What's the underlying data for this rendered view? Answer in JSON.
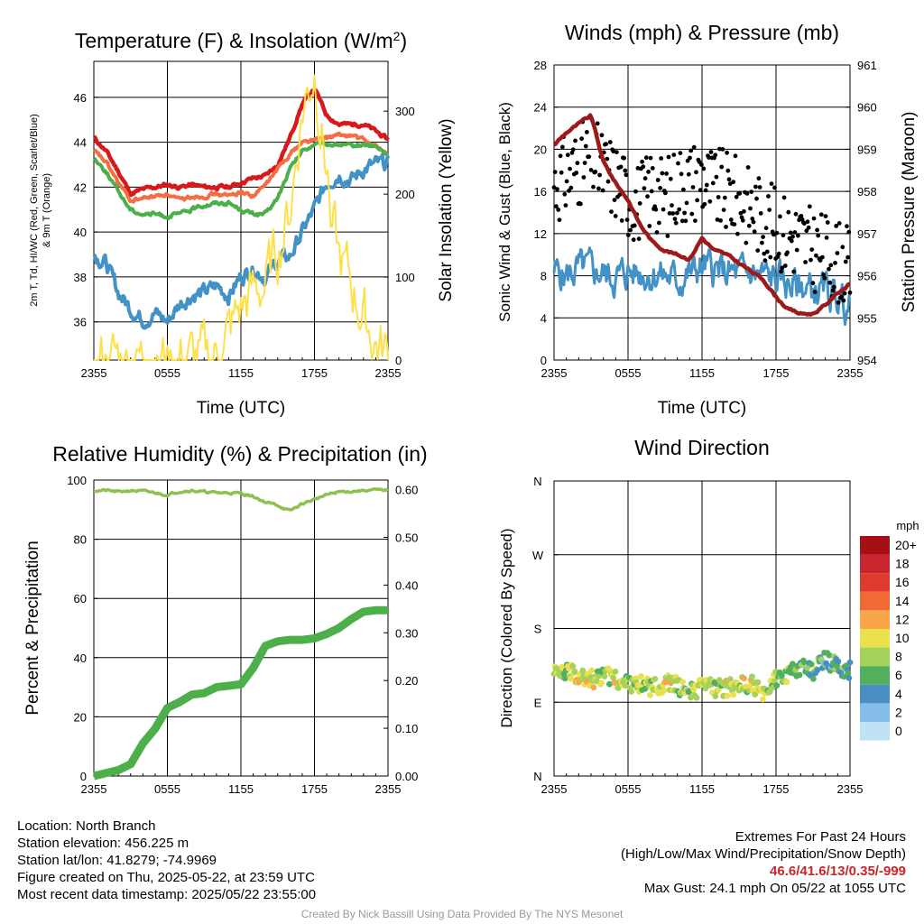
{
  "panels": {
    "temperature": {
      "title": "Temperature (F) & Insolation (W/m²)",
      "title_main": "Temperature (F) & Insolation (W/m",
      "title_sup": "2",
      "title_close": ")",
      "ylabel_left_line1": "2m T, Td, HI/WC (Red, Green, Scarlet/Blue)",
      "ylabel_left_line2": "& 9m T (Orange)",
      "ylabel_right": "Solar Insolation (Yellow)",
      "xlabel": "Time (UTC)"
    },
    "winds": {
      "title": "Winds (mph) & Pressure (mb)",
      "ylabel_left": "Sonic Wind & Gust (Blue, Black)",
      "ylabel_right": "Station Pressure (Maroon)",
      "xlabel": "Time (UTC)"
    },
    "humidity": {
      "title": "Relative Humidity (%) & Precipitation (in)",
      "ylabel_left": "Percent & Precipitation"
    },
    "direction": {
      "title": "Wind Direction",
      "ylabel_left": "Direction (Colored By Speed)",
      "legend_title": "mph"
    }
  },
  "footer": {
    "location": "Location: North Branch",
    "elevation": "Station elevation: 456.225 m",
    "latlon": "Station lat/lon: 41.8279; -74.9969",
    "created": "Figure created on Thu, 2025-05-22, at 23:59 UTC",
    "recent": "Most recent data timestamp: 2025/05/22 23:55:00",
    "extremes_title": "Extremes For Past 24 Hours",
    "extremes_sub": "(High/Low/Max Wind/Precipitation/Snow Depth)",
    "extremes_values": "46.6/41.6/13/0.35/-999",
    "max_gust": "Max Gust: 24.1 mph On 05/22 at 1055 UTC",
    "credit": "Created By Nick Bassill Using Data Provided By The NYS Mesonet"
  },
  "chart_data": [
    {
      "type": "line",
      "title": "Temperature (F) & Insolation (W/m2)",
      "xlabel": "Time (UTC)",
      "ylabel": "2m T, Td, HI/WC (Red, Green, Scarlet/Blue) & 9m T (Orange)",
      "ylabel_right": "Solar Insolation (Yellow)",
      "x_ticks": [
        "2355",
        "0555",
        "1155",
        "1755",
        "2355"
      ],
      "ylim": [
        34.3,
        47.6
      ],
      "y_ticks": [
        36,
        38,
        40,
        42,
        44,
        46
      ],
      "ylim_right": [
        0,
        360
      ],
      "y_ticks_right": [
        0,
        100,
        200,
        300
      ],
      "x_hours": [
        0,
        1,
        2,
        3,
        4,
        5,
        6,
        7,
        8,
        9,
        10,
        11,
        12,
        13,
        14,
        15,
        16,
        17,
        18,
        19,
        20,
        21,
        22,
        23,
        24
      ],
      "series": [
        {
          "color": "#d7191c",
          "axis": "left",
          "values": [
            44.2,
            43.6,
            42.7,
            41.7,
            41.9,
            42.0,
            42.1,
            42.0,
            42.1,
            42.0,
            42.0,
            42.0,
            42.2,
            42.4,
            42.5,
            43.0,
            44.2,
            45.7,
            46.4,
            45.2,
            44.8,
            44.8,
            44.8,
            44.5,
            44.1
          ]
        },
        {
          "color": "#f46d43",
          "axis": "left",
          "values": [
            43.6,
            43.1,
            42.2,
            41.4,
            41.5,
            41.6,
            41.7,
            41.4,
            41.6,
            41.6,
            41.7,
            41.6,
            41.8,
            41.6,
            42.1,
            42.8,
            43.5,
            44.0,
            44.1,
            44.2,
            44.3,
            44.3,
            44.1,
            43.8,
            43.5
          ]
        },
        {
          "color": "#4daf4a",
          "axis": "left",
          "values": [
            43.3,
            42.7,
            41.8,
            41.0,
            40.8,
            40.8,
            40.7,
            40.8,
            41.0,
            41.2,
            41.3,
            41.3,
            41.0,
            40.8,
            40.8,
            41.5,
            42.8,
            43.6,
            43.9,
            43.9,
            43.9,
            43.8,
            43.9,
            43.8,
            43.4
          ]
        },
        {
          "color": "#4292c6",
          "axis": "left",
          "values": [
            39.0,
            38.6,
            37.3,
            36.6,
            36.1,
            36.4,
            36.0,
            36.8,
            37.2,
            37.3,
            37.6,
            37.2,
            38.0,
            38.4,
            38.0,
            38.7,
            38.9,
            40.0,
            41.0,
            42.2,
            42.6,
            42.3,
            42.8,
            43.0,
            43.0
          ]
        },
        {
          "color": "#fee04b",
          "axis": "right",
          "values": [
            0,
            0,
            0,
            0,
            0,
            0,
            0,
            0,
            0,
            0,
            5,
            30,
            60,
            80,
            90,
            130,
            180,
            300,
            350,
            230,
            120,
            90,
            50,
            20,
            5
          ]
        }
      ]
    },
    {
      "type": "line",
      "title": "Winds (mph) & Pressure (mb)",
      "xlabel": "Time (UTC)",
      "ylabel": "Sonic Wind & Gust (Blue, Black)",
      "ylabel_right": "Station Pressure (Maroon)",
      "x_ticks": [
        "2355",
        "0555",
        "1155",
        "1755",
        "2355"
      ],
      "ylim": [
        0,
        28
      ],
      "y_ticks": [
        0,
        4,
        8,
        12,
        16,
        20,
        24,
        28
      ],
      "ylim_right": [
        954,
        961
      ],
      "y_ticks_right": [
        954,
        955,
        956,
        957,
        958,
        959,
        960,
        961
      ],
      "x_hours": [
        0,
        1,
        2,
        3,
        4,
        5,
        6,
        7,
        8,
        9,
        10,
        11,
        12,
        13,
        14,
        15,
        16,
        17,
        18,
        19,
        20,
        21,
        22,
        23,
        24
      ],
      "series": [
        {
          "color": "#4292c6",
          "axis": "left",
          "label": "Sonic Wind",
          "values": [
            8.5,
            8.0,
            8.6,
            8.5,
            8.2,
            7.8,
            8.4,
            8.3,
            8.2,
            8.0,
            7.5,
            8.2,
            8.8,
            8.6,
            8.2,
            8.0,
            8.3,
            7.9,
            7.7,
            7.2,
            7.0,
            6.6,
            6.4,
            6.0,
            5.0
          ]
        },
        {
          "color": "#9e1a1a",
          "axis": "right",
          "label": "Station Pressure",
          "values": [
            959.1,
            959.4,
            959.6,
            959.8,
            958.7,
            958.2,
            957.8,
            957.2,
            956.8,
            956.6,
            956.5,
            956.4,
            956.9,
            956.6,
            956.5,
            956.3,
            956.1,
            955.9,
            955.5,
            955.2,
            955.1,
            955.1,
            955.3,
            955.6,
            955.8
          ]
        },
        {
          "color": "#000000",
          "axis": "left",
          "label": "Gust",
          "style": "scatter",
          "values": [
            16.8,
            17.5,
            18.5,
            19.3,
            18.0,
            17.2,
            15.5,
            15.0,
            16.5,
            15.2,
            16.8,
            17.0,
            17.5,
            16.2,
            16.0,
            15.3,
            14.6,
            13.5,
            12.5,
            12.0,
            11.5,
            10.5,
            10.0,
            9.5,
            8.5
          ]
        }
      ]
    },
    {
      "type": "line",
      "title": "Relative Humidity (%) & Precipitation (in)",
      "ylabel": "Percent & Precipitation",
      "x_ticks": [
        "2355",
        "0555",
        "1155",
        "1755",
        "2355"
      ],
      "ylim": [
        0,
        100
      ],
      "y_ticks": [
        0,
        20,
        40,
        60,
        80,
        100
      ],
      "ylim_right": [
        0.0,
        0.62
      ],
      "y_ticks_right": [
        "0.00",
        "0.10",
        "0.20",
        "0.30",
        "0.40",
        "0.50",
        "0.60"
      ],
      "x_hours": [
        0,
        1,
        2,
        3,
        4,
        5,
        6,
        7,
        8,
        9,
        10,
        11,
        12,
        13,
        14,
        15,
        16,
        17,
        18,
        19,
        20,
        21,
        22,
        23,
        24
      ],
      "series": [
        {
          "color": "#8fc152",
          "axis": "left",
          "label": "Relative Humidity",
          "values": [
            96.5,
            96.5,
            96.0,
            96.5,
            96.2,
            95.7,
            95.0,
            96.2,
            96.5,
            96.0,
            95.7,
            95.7,
            95.5,
            94.5,
            92.5,
            91.5,
            89.5,
            92.0,
            93.5,
            95.0,
            96.0,
            96.2,
            96.5,
            96.6,
            96.6
          ]
        },
        {
          "color": "#4daf4a",
          "axis": "left",
          "label": "Precipitation",
          "values": [
            0,
            1,
            2,
            4,
            11,
            16,
            23,
            25,
            27.5,
            28,
            30,
            30.5,
            31,
            36.5,
            44,
            45.5,
            46,
            46,
            46.5,
            48,
            50,
            53,
            55.5,
            56,
            56
          ]
        }
      ]
    },
    {
      "type": "scatter",
      "title": "Wind Direction",
      "ylabel": "Direction (Colored By Speed)",
      "x_ticks": [
        "2355",
        "0555",
        "1155",
        "1755",
        "2355"
      ],
      "y_ticks": [
        "N",
        "E",
        "S",
        "W",
        "N"
      ],
      "ylim": [
        0,
        360
      ],
      "legend_title": "mph",
      "legend": [
        {
          "label": "20+",
          "color": "#a50f15"
        },
        {
          "label": "18",
          "color": "#c9252c"
        },
        {
          "label": "16",
          "color": "#e03a2e"
        },
        {
          "label": "14",
          "color": "#f16a36"
        },
        {
          "label": "12",
          "color": "#f9a54a"
        },
        {
          "label": "10",
          "color": "#ebe04e"
        },
        {
          "label": "8",
          "color": "#a5d25a"
        },
        {
          "label": "6",
          "color": "#52b05c"
        },
        {
          "label": "4",
          "color": "#4a8fc4"
        },
        {
          "label": "2",
          "color": "#84bde7"
        },
        {
          "label": "0",
          "color": "#bfe2f5"
        }
      ],
      "x_hours": [
        0,
        1,
        2,
        3,
        4,
        5,
        6,
        7,
        8,
        9,
        10,
        11,
        12,
        13,
        14,
        15,
        16,
        17,
        18,
        19,
        20,
        21,
        22,
        23,
        24
      ],
      "directions_deg": [
        125,
        126,
        124,
        118,
        122,
        120,
        110,
        112,
        108,
        114,
        110,
        104,
        108,
        107,
        106,
        110,
        111,
        103,
        120,
        123,
        133,
        128,
        142,
        135,
        128
      ],
      "speeds_mph": [
        8,
        8,
        9,
        10,
        8,
        9,
        8,
        9,
        8,
        10,
        8,
        7,
        9,
        8,
        10,
        8,
        10,
        8,
        7,
        8,
        6,
        6,
        5,
        6,
        5
      ]
    }
  ]
}
